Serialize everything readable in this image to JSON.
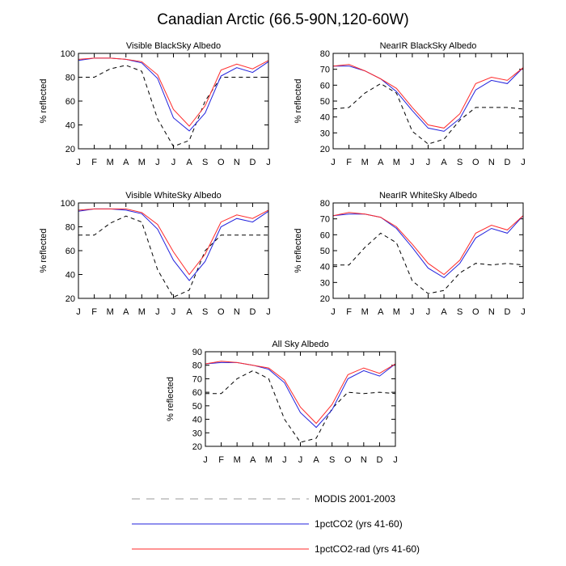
{
  "title": "Canadian Arctic (66.5-90N,120-60W)",
  "series_styles": {
    "modis": {
      "color": "#000000",
      "dash": "5,4",
      "legend_color": "#999999",
      "legend_dash": "10,8"
    },
    "co2": {
      "color": "#2222dd"
    },
    "co2rad": {
      "color": "#ff2a2a"
    }
  },
  "legend": [
    {
      "key": "modis",
      "label": "MODIS 2001-2003"
    },
    {
      "key": "co2",
      "label": "1pctCO2 (yrs 41-60)"
    },
    {
      "key": "co2rad",
      "label": "1pctCO2-rad (yrs 41-60)"
    }
  ],
  "chart_data": [
    {
      "id": "vis-black",
      "type": "line",
      "title": "Visible BlackSky Albedo",
      "ylabel": "% reflected",
      "categories": [
        "J",
        "F",
        "M",
        "A",
        "M",
        "J",
        "J",
        "A",
        "S",
        "O",
        "N",
        "D",
        "J"
      ],
      "ylim": [
        20,
        100
      ],
      "yticks": [
        20,
        40,
        60,
        80,
        100
      ],
      "grid": false,
      "series": [
        {
          "key": "modis",
          "name": "MODIS 2001-2003",
          "values": [
            80,
            80,
            87,
            90,
            85,
            45,
            22,
            27,
            60,
            80,
            80,
            80,
            80
          ]
        },
        {
          "key": "co2",
          "name": "1pctCO2 (yrs 41-60)",
          "values": [
            94,
            96,
            96,
            95,
            92,
            79,
            46,
            35,
            50,
            81,
            88,
            84,
            93
          ]
        },
        {
          "key": "co2rad",
          "name": "1pctCO2-rad (yrs 41-60)",
          "values": [
            95,
            96,
            96,
            95,
            93,
            82,
            53,
            39,
            56,
            86,
            91,
            87,
            94
          ]
        }
      ]
    },
    {
      "id": "nir-black",
      "type": "line",
      "title": "NearIR BlackSky Albedo",
      "ylabel": "% reflected",
      "categories": [
        "J",
        "F",
        "M",
        "A",
        "M",
        "J",
        "J",
        "A",
        "S",
        "O",
        "N",
        "D",
        "J"
      ],
      "ylim": [
        20,
        80
      ],
      "yticks": [
        20,
        30,
        40,
        50,
        60,
        70,
        80
      ],
      "grid": false,
      "series": [
        {
          "key": "modis",
          "name": "MODIS 2001-2003",
          "values": [
            45,
            46,
            55,
            61,
            55,
            31,
            23,
            26,
            38,
            46,
            46,
            46,
            45
          ]
        },
        {
          "key": "co2",
          "name": "1pctCO2 (yrs 41-60)",
          "values": [
            72,
            72,
            69,
            64,
            56,
            44,
            33,
            31,
            39,
            57,
            63,
            61,
            71
          ]
        },
        {
          "key": "co2rad",
          "name": "1pctCO2-rad (yrs 41-60)",
          "values": [
            72,
            73,
            69,
            64,
            58,
            46,
            35,
            33,
            42,
            61,
            65,
            63,
            71
          ]
        }
      ]
    },
    {
      "id": "vis-white",
      "type": "line",
      "title": "Visible WhiteSky Albedo",
      "ylabel": "% reflected",
      "categories": [
        "J",
        "F",
        "M",
        "A",
        "M",
        "J",
        "J",
        "A",
        "S",
        "O",
        "N",
        "D",
        "J"
      ],
      "ylim": [
        20,
        100
      ],
      "yticks": [
        20,
        40,
        60,
        80,
        100
      ],
      "grid": false,
      "series": [
        {
          "key": "modis",
          "name": "MODIS 2001-2003",
          "values": [
            73,
            73,
            83,
            89,
            84,
            44,
            21,
            27,
            60,
            73,
            73,
            73,
            73
          ]
        },
        {
          "key": "co2",
          "name": "1pctCO2 (yrs 41-60)",
          "values": [
            93,
            95,
            95,
            94,
            91,
            78,
            52,
            35,
            51,
            80,
            87,
            84,
            93
          ]
        },
        {
          "key": "co2rad",
          "name": "1pctCO2-rad (yrs 41-60)",
          "values": [
            94,
            95,
            95,
            95,
            92,
            82,
            59,
            40,
            57,
            84,
            90,
            87,
            94
          ]
        }
      ]
    },
    {
      "id": "nir-white",
      "type": "line",
      "title": "NearIR WhiteSky Albedo",
      "ylabel": "% reflected",
      "categories": [
        "J",
        "F",
        "M",
        "A",
        "M",
        "J",
        "J",
        "A",
        "S",
        "O",
        "N",
        "D",
        "J"
      ],
      "ylim": [
        20,
        80
      ],
      "yticks": [
        20,
        30,
        40,
        50,
        60,
        70,
        80
      ],
      "grid": false,
      "series": [
        {
          "key": "modis",
          "name": "MODIS 2001-2003",
          "values": [
            41,
            41,
            52,
            61,
            55,
            31,
            23,
            25,
            36,
            42,
            41,
            42,
            41
          ]
        },
        {
          "key": "co2",
          "name": "1pctCO2 (yrs 41-60)",
          "values": [
            72,
            73,
            73,
            71,
            64,
            52,
            39,
            33,
            42,
            58,
            64,
            61,
            72
          ]
        },
        {
          "key": "co2rad",
          "name": "1pctCO2-rad (yrs 41-60)",
          "values": [
            72,
            74,
            73,
            71,
            65,
            54,
            42,
            35,
            44,
            61,
            66,
            63,
            72
          ]
        }
      ]
    },
    {
      "id": "all-sky",
      "type": "line",
      "title": "All Sky Albedo",
      "ylabel": "% reflected",
      "categories": [
        "J",
        "F",
        "M",
        "A",
        "M",
        "J",
        "J",
        "A",
        "S",
        "O",
        "N",
        "D",
        "J"
      ],
      "ylim": [
        20,
        90
      ],
      "yticks": [
        20,
        30,
        40,
        50,
        60,
        70,
        80,
        90
      ],
      "grid": false,
      "series": [
        {
          "key": "modis",
          "name": "MODIS 2001-2003",
          "values": [
            59,
            59,
            70,
            76,
            70,
            40,
            23,
            26,
            48,
            60,
            59,
            60,
            59
          ]
        },
        {
          "key": "co2",
          "name": "1pctCO2 (yrs 41-60)",
          "values": [
            81,
            82,
            82,
            80,
            77,
            67,
            45,
            34,
            47,
            70,
            76,
            72,
            81
          ]
        },
        {
          "key": "co2rad",
          "name": "1pctCO2-rad (yrs 41-60)",
          "values": [
            81,
            83,
            82,
            80,
            78,
            69,
            49,
            37,
            51,
            73,
            78,
            74,
            81
          ]
        }
      ]
    }
  ]
}
